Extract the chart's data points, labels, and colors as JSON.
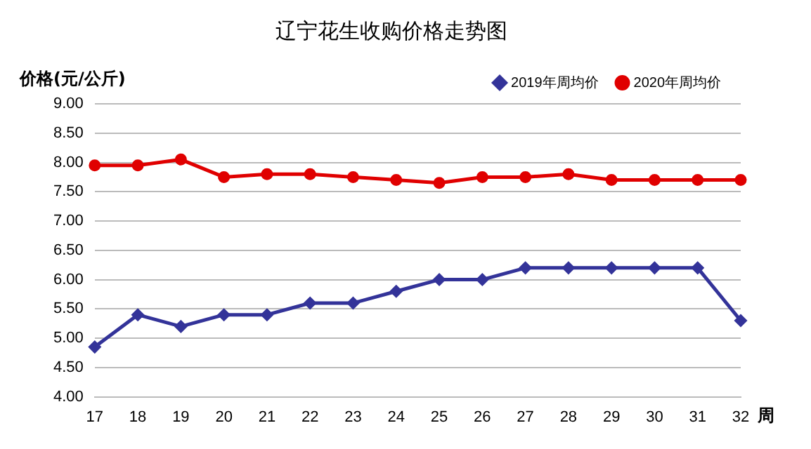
{
  "chart_data": {
    "type": "line",
    "title": "辽宁花生收购价格走势图",
    "ylabel": "价格(元/公斤)",
    "xlabel": "周",
    "categories": [
      "17",
      "18",
      "19",
      "20",
      "21",
      "22",
      "23",
      "24",
      "25",
      "26",
      "27",
      "28",
      "29",
      "30",
      "31",
      "32"
    ],
    "series": [
      {
        "name": "2019年周均价",
        "color": "#333399",
        "marker": "diamond",
        "values": [
          4.85,
          5.4,
          5.2,
          5.4,
          5.4,
          5.6,
          5.6,
          5.8,
          6.0,
          6.0,
          6.2,
          6.2,
          6.2,
          6.2,
          6.2,
          5.3
        ]
      },
      {
        "name": "2020年周均价",
        "color": "#e00000",
        "marker": "circle",
        "values": [
          7.95,
          7.95,
          8.05,
          7.75,
          7.8,
          7.8,
          7.75,
          7.7,
          7.65,
          7.75,
          7.75,
          7.8,
          7.7,
          7.7,
          7.7,
          7.7
        ]
      }
    ],
    "ylim": [
      4,
      9
    ],
    "yticks": [
      {
        "value": 4,
        "label": "4.00"
      },
      {
        "value": 4.5,
        "label": "4.50"
      },
      {
        "value": 5,
        "label": "5.00"
      },
      {
        "value": 5.5,
        "label": "5.50"
      },
      {
        "value": 6,
        "label": "6.00"
      },
      {
        "value": 6.5,
        "label": "6.50"
      },
      {
        "value": 7,
        "label": "7.00"
      },
      {
        "value": 7.5,
        "label": "7.50"
      },
      {
        "value": 8,
        "label": "8.00"
      },
      {
        "value": 8.5,
        "label": "8.50"
      },
      {
        "value": 9,
        "label": "9.00"
      }
    ],
    "grid": "y",
    "legend": "top right",
    "line_style": "solid"
  }
}
